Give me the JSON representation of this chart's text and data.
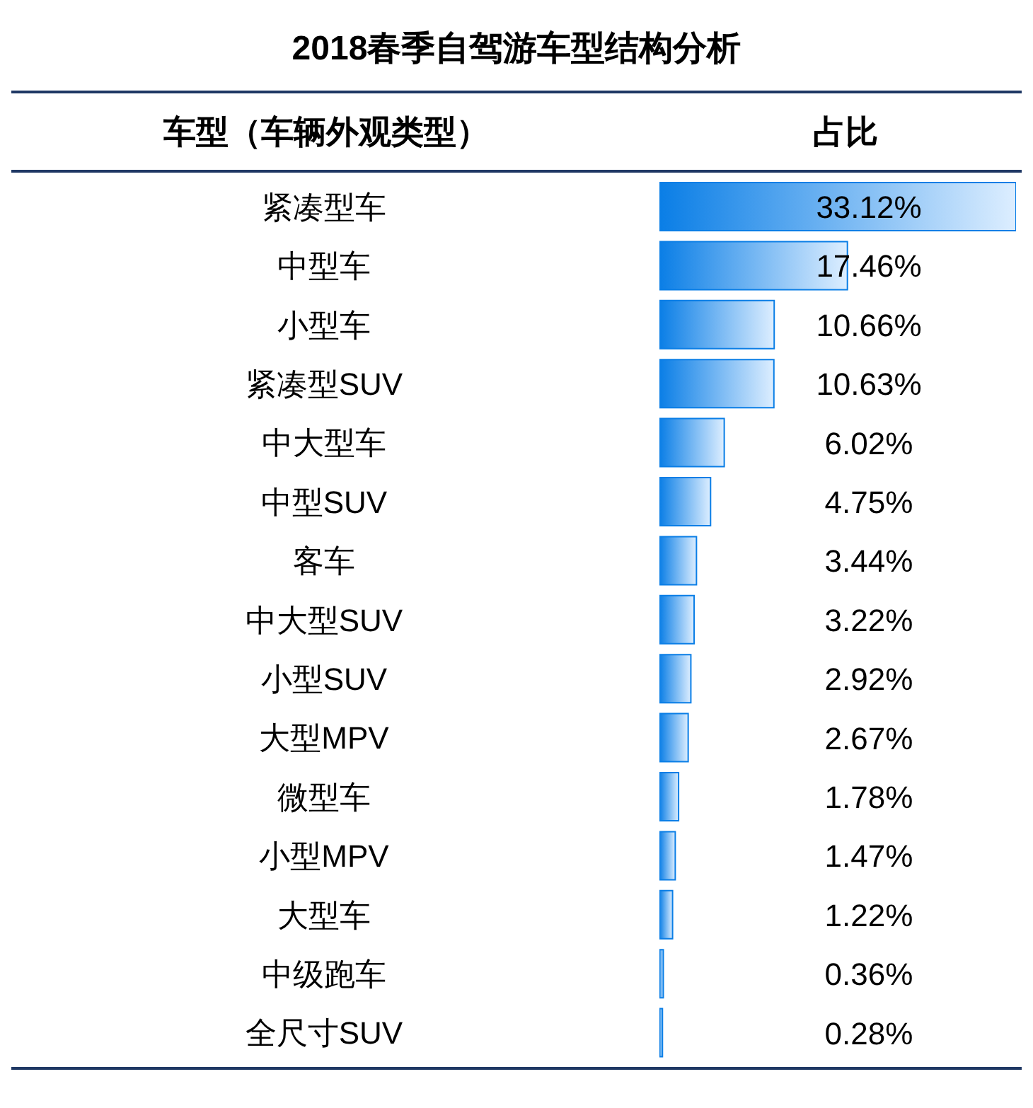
{
  "chart_data": {
    "type": "bar",
    "orientation": "horizontal",
    "title": "2018春季自驾游车型结构分析",
    "ylabel": "车型（车辆外观类型）",
    "xlabel": "占比",
    "categories": [
      "紧凑型车",
      "中型车",
      "小型车",
      "紧凑型SUV",
      "中大型车",
      "中型SUV",
      "客车",
      "中大型SUV",
      "小型SUV",
      "大型MPV",
      "微型车",
      "小型MPV",
      "大型车",
      "中级跑车",
      "全尺寸SUV"
    ],
    "values": [
      33.12,
      17.46,
      10.66,
      10.63,
      6.02,
      4.75,
      3.44,
      3.22,
      2.92,
      2.67,
      1.78,
      1.47,
      1.22,
      0.36,
      0.28
    ],
    "value_labels": [
      "33.12%",
      "17.46%",
      "10.66%",
      "10.63%",
      "6.02%",
      "4.75%",
      "3.44%",
      "3.22%",
      "2.92%",
      "2.67%",
      "1.78%",
      "1.47%",
      "1.22%",
      "0.36%",
      "0.28%"
    ],
    "color": "#0a7ee6"
  }
}
